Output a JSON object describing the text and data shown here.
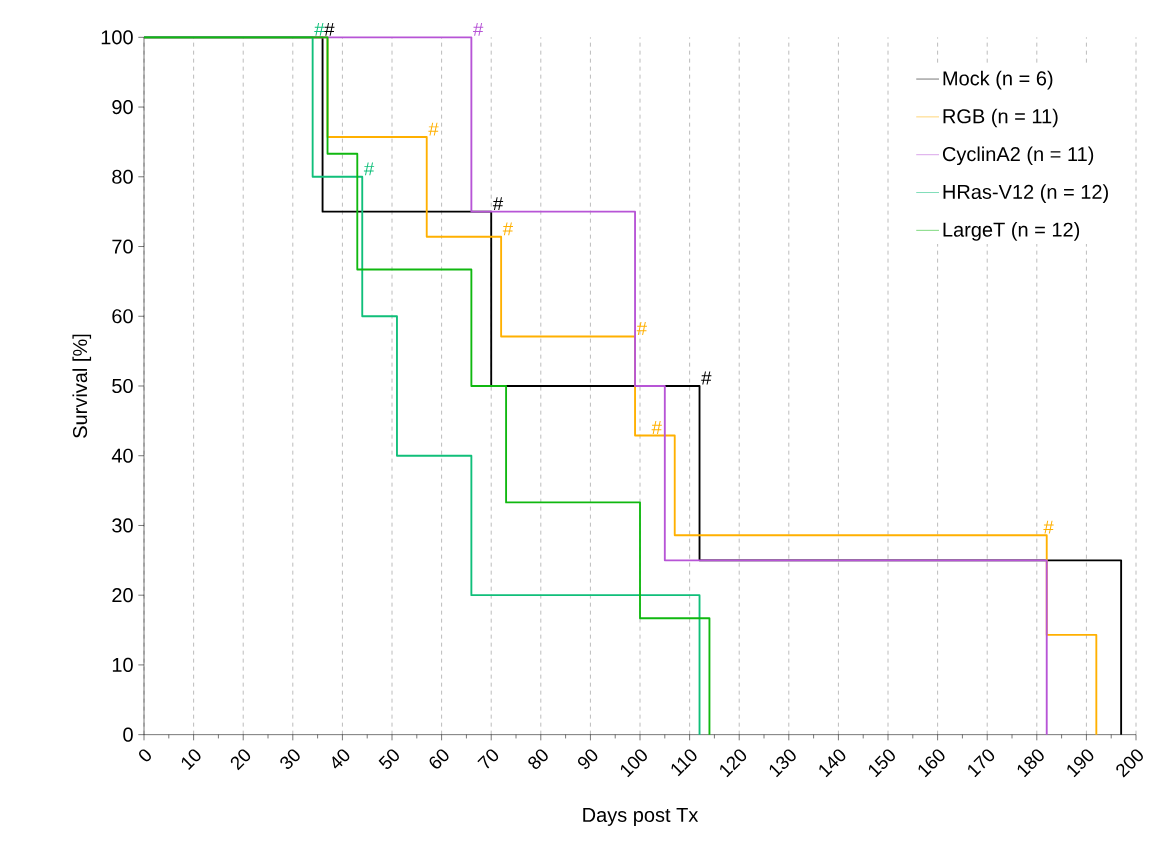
{
  "chart_data": {
    "type": "step",
    "xlabel": "Days post Tx",
    "ylabel": "Survival [%]",
    "xlim": [
      0,
      200
    ],
    "ylim": [
      0,
      100
    ],
    "xticks": [
      0,
      10,
      20,
      30,
      40,
      50,
      60,
      70,
      80,
      90,
      100,
      110,
      120,
      130,
      140,
      150,
      160,
      170,
      180,
      190,
      200
    ],
    "yticks": [
      0,
      10,
      20,
      30,
      40,
      50,
      60,
      70,
      80,
      90,
      100
    ],
    "grid": "x",
    "legend": "top right",
    "line_style": "solid",
    "marker": "none",
    "series": [
      {
        "name": "Mock (n = 6)",
        "color": "#000000",
        "x": [
          0,
          36,
          70,
          112,
          197
        ],
        "values": [
          100,
          75,
          50,
          25,
          0
        ]
      },
      {
        "name": "RGB (n = 11)",
        "color": "#ffb000",
        "x": [
          0,
          37,
          57,
          72,
          99,
          107,
          182,
          192
        ],
        "values": [
          100,
          85.7,
          71.4,
          57.1,
          42.9,
          28.6,
          14.3,
          0
        ]
      },
      {
        "name": "CyclinA2 (n = 11)",
        "color": "#b755d6",
        "x": [
          0,
          66,
          99,
          105,
          182
        ],
        "values": [
          100,
          75,
          50,
          25,
          0
        ]
      },
      {
        "name": "HRas-V12 (n = 12)",
        "color": "#10bf7a",
        "x": [
          0,
          34,
          44,
          51,
          66,
          112
        ],
        "values": [
          100,
          80,
          60,
          40,
          20,
          0
        ]
      },
      {
        "name": "LargeT (n = 12)",
        "color": "#10b810",
        "x": [
          0,
          37,
          43,
          66,
          73,
          100,
          114
        ],
        "values": [
          100,
          83.3,
          66.7,
          50,
          33.3,
          16.7,
          0
        ]
      }
    ],
    "annotations": [
      {
        "text": "#",
        "x": 34,
        "y": 100
      },
      {
        "text": "#",
        "x": 36,
        "y": 100
      },
      {
        "text": "#",
        "x": 66,
        "y": 100
      },
      {
        "text": "#",
        "x": 57,
        "y": 85.7
      },
      {
        "text": "#",
        "x": 44,
        "y": 80
      },
      {
        "text": "#",
        "x": 70,
        "y": 75
      },
      {
        "text": "#",
        "x": 72,
        "y": 71.4
      },
      {
        "text": "#",
        "x": 99,
        "y": 57.1
      },
      {
        "text": "#",
        "x": 112,
        "y": 50
      },
      {
        "text": "#",
        "x": 102,
        "y": 42.9
      },
      {
        "text": "#",
        "x": 181,
        "y": 28.6
      }
    ]
  }
}
